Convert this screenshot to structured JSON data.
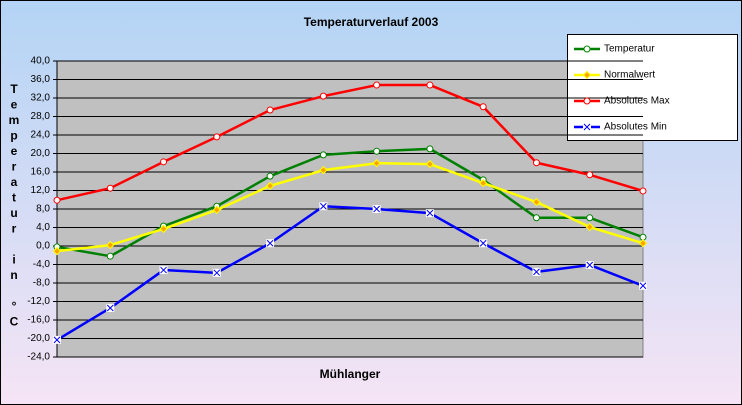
{
  "chart_data": {
    "type": "line",
    "title": "Temperaturverlauf  2003",
    "x_label": "Mühlanger",
    "y_label": "Temperatur in °C",
    "categories": [
      null,
      null,
      null,
      null,
      null,
      null,
      null,
      null,
      null,
      null,
      null,
      null
    ],
    "ylim": [
      -24,
      40
    ],
    "yticks": [
      {
        "value": -24,
        "label": "-24,0"
      },
      {
        "value": -20,
        "label": "-20,0"
      },
      {
        "value": -16,
        "label": "-16,0"
      },
      {
        "value": -12,
        "label": "-12,0"
      },
      {
        "value": -8,
        "label": "-8,0"
      },
      {
        "value": -4,
        "label": "-4,0"
      },
      {
        "value": 0,
        "label": "0,0"
      },
      {
        "value": 4,
        "label": "4,0"
      },
      {
        "value": 8,
        "label": "8,0"
      },
      {
        "value": 12,
        "label": "12,0"
      },
      {
        "value": 16,
        "label": "16,0"
      },
      {
        "value": 20,
        "label": "20,0"
      },
      {
        "value": 24,
        "label": "24,0"
      },
      {
        "value": 28,
        "label": "28,0"
      },
      {
        "value": 32,
        "label": "32,0"
      },
      {
        "value": 36,
        "label": "36,0"
      },
      {
        "value": 40,
        "label": "40,0"
      }
    ],
    "grid": true,
    "legend": "top-right",
    "series": [
      {
        "name": "Temperatur",
        "color": "#008000",
        "marker": "circle",
        "values": [
          -0.2,
          -2.2,
          4.3,
          8.6,
          15.1,
          19.7,
          20.5,
          21.0,
          14.3,
          6.1,
          6.1,
          1.9
        ]
      },
      {
        "name": "Normalwert",
        "color": "#ffff00",
        "marker": "diamond",
        "values": [
          -1.1,
          0.2,
          3.7,
          7.8,
          13.0,
          16.4,
          17.9,
          17.7,
          13.6,
          9.5,
          4.1,
          0.6
        ]
      },
      {
        "name": "Absolutes Max",
        "color": "#ff0000",
        "marker": "circle",
        "values": [
          9.9,
          12.5,
          18.2,
          23.6,
          29.4,
          32.4,
          34.8,
          34.8,
          30.1,
          18.0,
          15.4,
          11.9
        ]
      },
      {
        "name": "Absolutes Min",
        "color": "#0000ff",
        "marker": "x",
        "values": [
          -20.3,
          -13.4,
          -5.2,
          -5.8,
          0.6,
          8.6,
          8.0,
          7.1,
          0.6,
          -5.6,
          -4.1,
          -8.6
        ]
      }
    ]
  }
}
